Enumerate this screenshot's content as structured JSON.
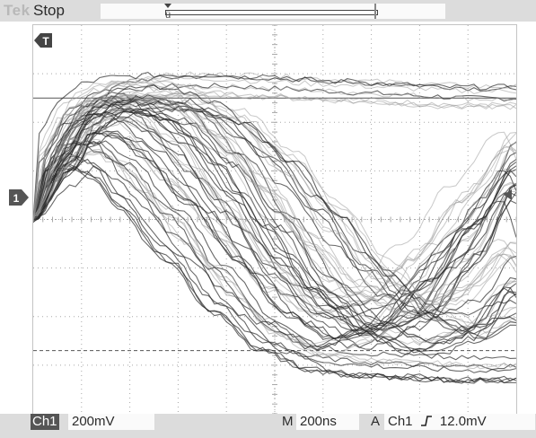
{
  "status": {
    "brand": "Tek",
    "run_state": "Stop",
    "trigger_position_marker": "ü"
  },
  "markers": {
    "channel_indicator": "1",
    "trigger_time_marker": "T",
    "trigger_level_marker": "arrow-left"
  },
  "readouts": {
    "channel": "Ch1",
    "volts_per_div": "200mV",
    "timebase_prefix": "M",
    "time_per_div": "200ns",
    "trigger_prefix": "A",
    "trigger_source": "Ch1",
    "trigger_slope_icon": "rising-edge-icon",
    "trigger_level": "12.0mV"
  },
  "colors": {
    "trace_dark": "#2a2a2a",
    "trace_light": "#9a9a9a",
    "grid": "#a8a8a8",
    "bars": "#dcdcdc"
  },
  "chart_data": {
    "type": "line",
    "description": "Overlaid persistence of many oscilloscope waveform acquisitions on Ch1",
    "grid_divisions": {
      "x": 10,
      "y": 8
    },
    "x_units": "div",
    "y_units": "div",
    "ylim": [
      -4,
      4
    ],
    "xlim": [
      0,
      10
    ],
    "series": [
      {
        "x": [
          0,
          0.5,
          1,
          1.5,
          2,
          3,
          4,
          5,
          6,
          7,
          8,
          9,
          10
        ],
        "values": [
          0,
          1.5,
          2.3,
          2.6,
          2.7,
          2.75,
          2.75,
          2.7,
          2.65,
          2.6,
          2.55,
          2.5,
          2.5
        ]
      },
      {
        "x": [
          0,
          0.5,
          1,
          1.5,
          2,
          3,
          4,
          5,
          6,
          7,
          8,
          9,
          10
        ],
        "values": [
          0,
          0.9,
          1.3,
          1.1,
          0.5,
          -0.6,
          -1.7,
          -2.5,
          -2.9,
          -3.0,
          -3.05,
          -3.1,
          -3.1
        ]
      },
      {
        "x": [
          0,
          0.5,
          1,
          1.5,
          2,
          3,
          4,
          5,
          6,
          7,
          8,
          9,
          10
        ],
        "values": [
          0,
          1.1,
          1.8,
          2.0,
          1.8,
          0.9,
          -0.2,
          -1.3,
          -1.8,
          -1.6,
          -0.7,
          0.5,
          1.6
        ]
      },
      {
        "x": [
          0,
          0.5,
          1,
          1.5,
          2,
          3,
          4,
          5,
          6,
          7,
          8,
          9,
          10
        ],
        "values": [
          0,
          1.4,
          2.2,
          2.4,
          2.3,
          1.6,
          0.4,
          -0.9,
          -1.9,
          -2.4,
          -2.0,
          -0.8,
          0.6
        ]
      },
      {
        "x": [
          0,
          0.5,
          1,
          1.5,
          2,
          3,
          4,
          5,
          6,
          7,
          8,
          9,
          10
        ],
        "values": [
          0,
          1.2,
          2.0,
          2.3,
          2.4,
          2.2,
          1.3,
          0.0,
          -1.3,
          -2.2,
          -2.6,
          -2.3,
          -1.3
        ]
      },
      {
        "x": [
          0,
          0.5,
          1,
          1.5,
          2,
          3,
          4,
          5,
          6,
          7,
          8,
          9,
          10
        ],
        "values": [
          0,
          1.0,
          1.6,
          1.6,
          1.2,
          0.2,
          -1.0,
          -2.1,
          -2.6,
          -2.3,
          -1.4,
          -0.2,
          1.0
        ]
      },
      {
        "x": [
          0,
          0.5,
          1,
          1.5,
          2,
          3,
          4,
          5,
          6,
          7,
          8,
          9,
          10
        ],
        "values": [
          0,
          1.3,
          2.1,
          2.4,
          2.5,
          2.5,
          2.2,
          1.4,
          0.3,
          -0.9,
          -1.8,
          -2.2,
          -1.9
        ]
      },
      {
        "x": [
          0,
          0.5,
          1,
          1.5,
          2,
          3,
          4,
          5,
          6,
          7,
          8,
          9,
          10
        ],
        "values": [
          0,
          1.5,
          2.3,
          2.6,
          2.7,
          2.6,
          1.9,
          0.8,
          -0.4,
          -1.4,
          -1.8,
          -1.5,
          -0.6
        ]
      }
    ],
    "reference_lines": [
      {
        "orientation": "horizontal",
        "y": 2.5,
        "style": "solid"
      },
      {
        "orientation": "horizontal",
        "y": -2.7,
        "style": "dashed"
      }
    ]
  }
}
